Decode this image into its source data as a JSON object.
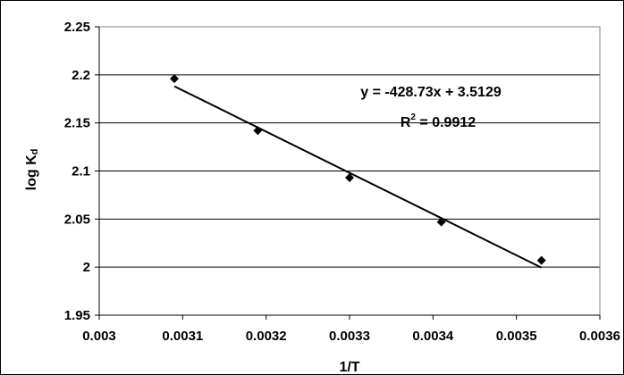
{
  "chart_data": {
    "type": "scatter",
    "xlabel": "1/T",
    "ylabel": {
      "main": "log K",
      "sub": "d"
    },
    "xlim": [
      0.003,
      0.0036
    ],
    "ylim": [
      1.95,
      2.25
    ],
    "xticks": [
      "0.003",
      "0.0031",
      "0.0032",
      "0.0033",
      "0.0034",
      "0.0035",
      "0.0036"
    ],
    "yticks": [
      "1.95",
      "2",
      "2.05",
      "2.1",
      "2.15",
      "2.2",
      "2.25"
    ],
    "grid": "horizontal",
    "marker": "diamond",
    "points": [
      {
        "x": 0.00309,
        "y": 2.196
      },
      {
        "x": 0.00319,
        "y": 2.142
      },
      {
        "x": 0.0033,
        "y": 2.093
      },
      {
        "x": 0.00341,
        "y": 2.047
      },
      {
        "x": 0.00353,
        "y": 2.007
      }
    ],
    "trendline": {
      "slope": -428.73,
      "intercept": 3.5129,
      "x_range": [
        0.00309,
        0.00353
      ]
    },
    "annotation": {
      "equation": "y = -428.73x + 3.5129",
      "r2_label": "R",
      "r2_sup": "2",
      "r2_value": " = 0.9912"
    }
  }
}
